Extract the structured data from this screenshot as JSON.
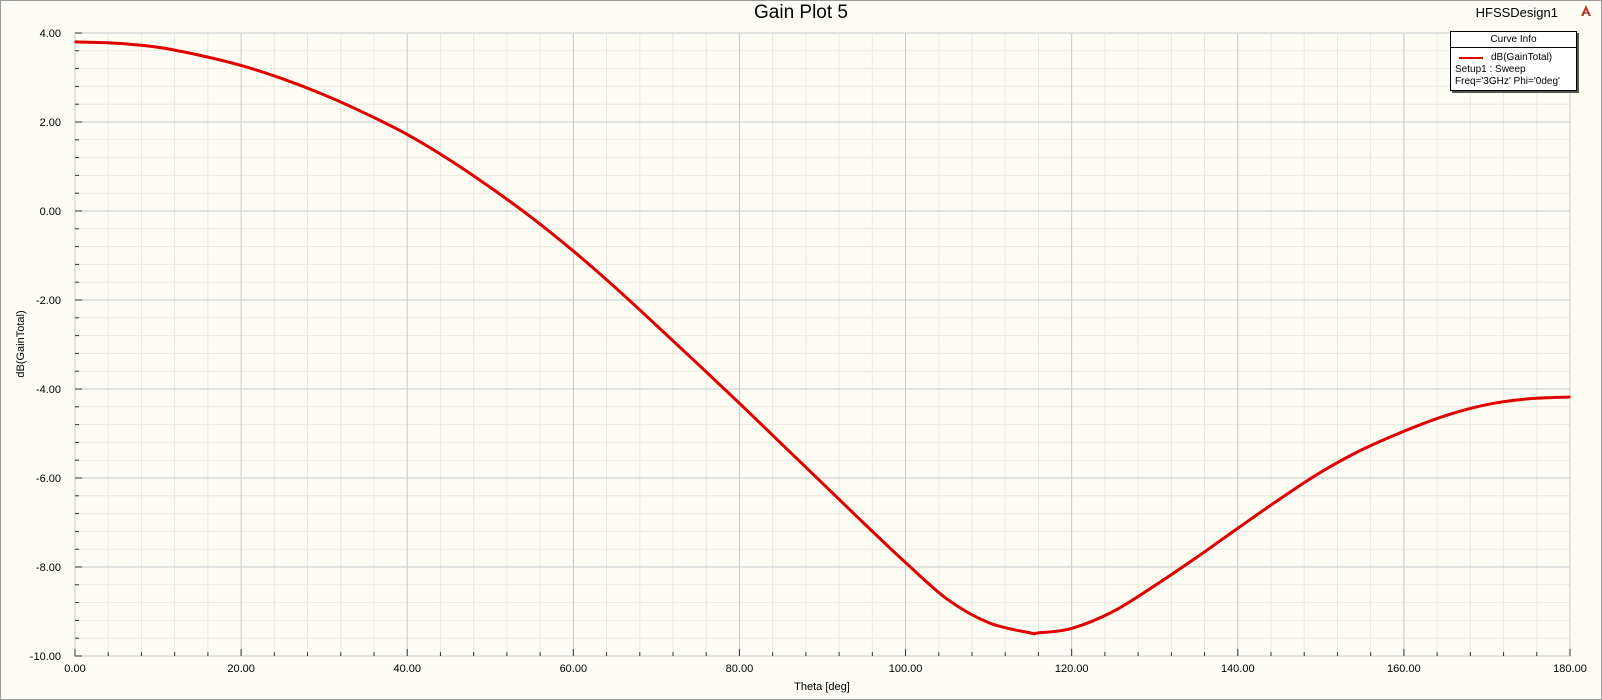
{
  "design_name": "HFSSDesign1",
  "legend": {
    "header": "Curve Info",
    "entry_name": "dB(GainTotal)",
    "entry_line2": "Setup1 : Sweep",
    "entry_line3": "Freq='3GHz' Phi='0deg'"
  },
  "colors": {
    "curve": "#e00000",
    "background": "#fdfdf3",
    "grid_major": "#c8c8c8",
    "grid_minor": "#e8e8e0"
  },
  "chart_data": {
    "type": "line",
    "title": "Gain Plot 5",
    "xlabel": "Theta [deg]",
    "ylabel": "dB(GainTotal)",
    "xlim": [
      0,
      180
    ],
    "ylim": [
      -10,
      4
    ],
    "x_ticks": [
      "0.00",
      "20.00",
      "40.00",
      "60.00",
      "80.00",
      "100.00",
      "120.00",
      "140.00",
      "160.00",
      "180.00"
    ],
    "y_ticks": [
      "4.00",
      "2.00",
      "0.00",
      "-2.00",
      "-4.00",
      "-6.00",
      "-8.00",
      "-10.00"
    ],
    "grid": true,
    "legend_position": "top-right",
    "series": [
      {
        "name": "dB(GainTotal)",
        "x": [
          0,
          5,
          10,
          15,
          20,
          25,
          30,
          35,
          40,
          45,
          50,
          55,
          60,
          65,
          70,
          75,
          80,
          85,
          90,
          95,
          100,
          105,
          110,
          115,
          116,
          120,
          125,
          130,
          135,
          140,
          145,
          150,
          155,
          160,
          165,
          170,
          175,
          180
        ],
        "y": [
          3.8,
          3.77,
          3.68,
          3.5,
          3.27,
          2.97,
          2.61,
          2.19,
          1.72,
          1.16,
          0.53,
          -0.15,
          -0.9,
          -1.71,
          -2.57,
          -3.44,
          -4.32,
          -5.22,
          -6.12,
          -7.02,
          -7.9,
          -8.72,
          -9.25,
          -9.48,
          -9.48,
          -9.38,
          -9.0,
          -8.42,
          -7.79,
          -7.13,
          -6.48,
          -5.87,
          -5.36,
          -4.95,
          -4.6,
          -4.35,
          -4.22,
          -4.18
        ]
      }
    ]
  }
}
